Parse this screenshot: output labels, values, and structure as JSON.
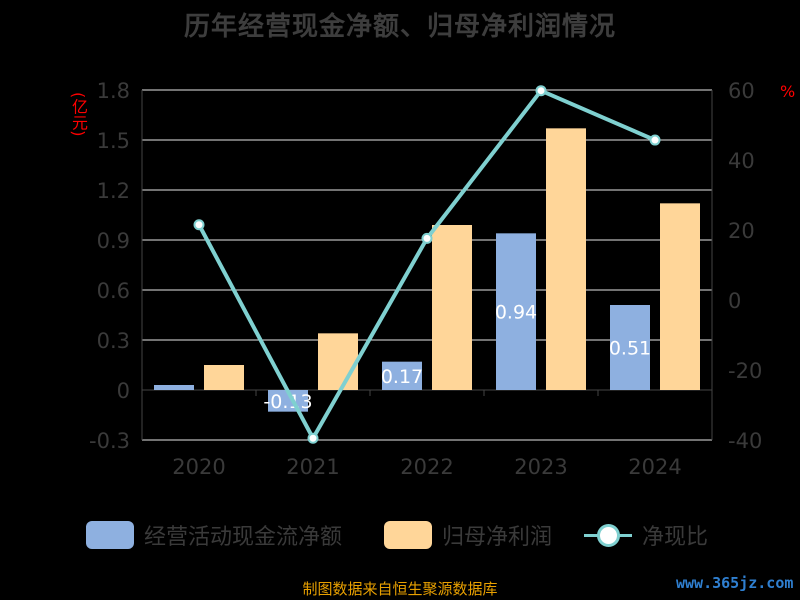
{
  "chart_data": {
    "type": "bar",
    "title": "历年经营现金净额、归母净利润情况",
    "categories": [
      "2020",
      "2021",
      "2022",
      "2023",
      "2024"
    ],
    "left_axis": {
      "unit_label": "(亿元)",
      "ylim": [
        -0.3,
        1.8
      ],
      "ticks": [
        "1.8",
        "1.5",
        "1.2",
        "0.9",
        "0.6",
        "0.3",
        "0",
        "-0.3"
      ]
    },
    "right_axis": {
      "unit_label": "%",
      "ylim": [
        -40,
        60
      ],
      "ticks": [
        "60",
        "40",
        "20",
        "0",
        "-20",
        "-40"
      ]
    },
    "series": [
      {
        "name": "经营活动现金流净额",
        "type": "bar",
        "axis": "left",
        "values": [
          0.03,
          -0.13,
          0.17,
          0.94,
          0.51
        ],
        "data_labels": [
          "",
          "-0.13",
          "0.17",
          "0.94",
          "0.51"
        ]
      },
      {
        "name": "归母净利润",
        "type": "bar",
        "axis": "left",
        "values": [
          0.15,
          0.34,
          0.99,
          1.57,
          1.12
        ]
      },
      {
        "name": "净现比",
        "type": "line",
        "axis": "right",
        "values": [
          21.5,
          -39.5,
          17.6,
          59.8,
          45.7
        ]
      }
    ],
    "colors": {
      "cash": "#8eb0e0",
      "profit": "#ffd699",
      "ratio": "#7fd0d0"
    },
    "grid": true,
    "legend_position": "bottom"
  },
  "source": "制图数据来自恒生聚源数据库",
  "watermark": "www.365jz.com"
}
